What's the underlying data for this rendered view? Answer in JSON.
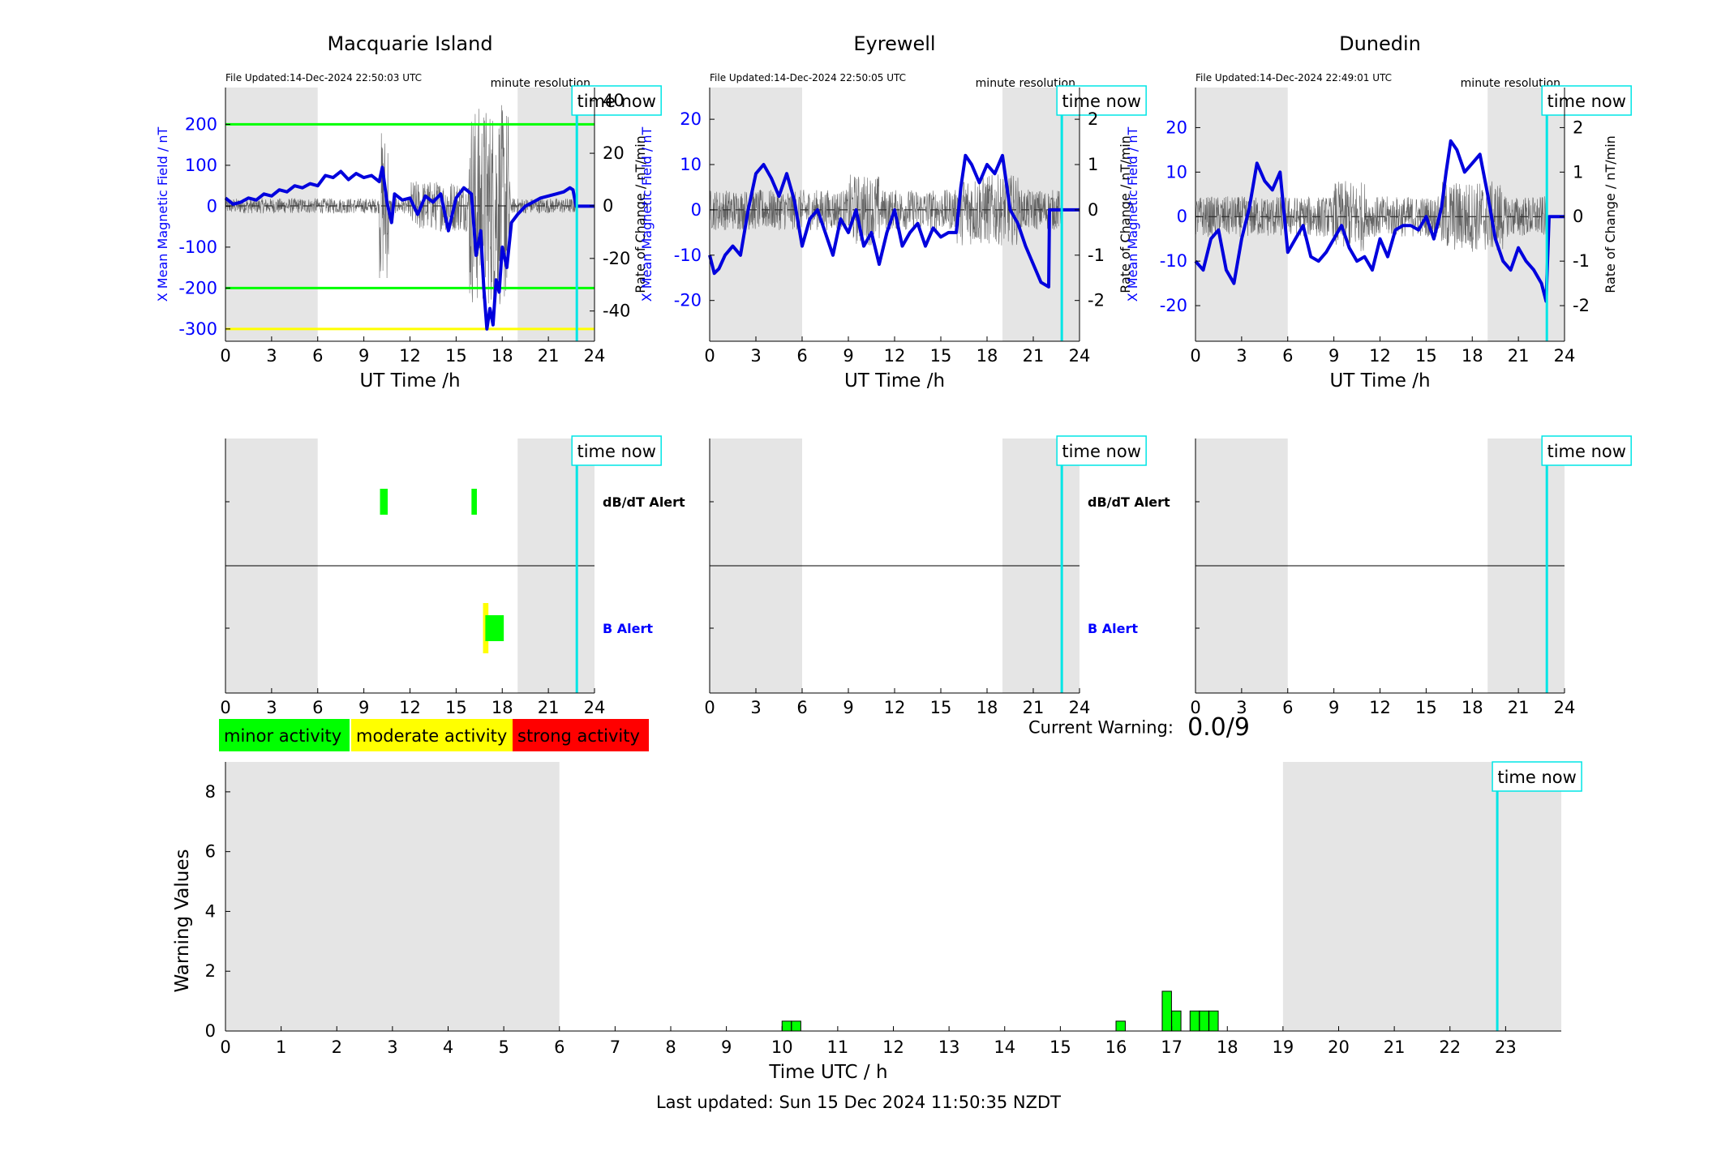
{
  "page": {
    "current_warning_label": "Current Warning:",
    "current_warning_value": "0.0/9",
    "footer": "Last updated: Sun 15 Dec 2024 11:50:35 NZDT",
    "time_now_label": "time now"
  },
  "legend": {
    "minor": "minor activity",
    "moderate": "moderate activity",
    "strong": "strong activity"
  },
  "colors": {
    "axis_blue": "#0000ff",
    "series_blue": "#0000dd",
    "night_shade": "#e5e5e5",
    "cyan_time": "#00e5e5",
    "green": "#00ff00",
    "yellow": "#ffff00",
    "red": "#ff0000",
    "rate_trace": "#333333"
  },
  "chart_data": [
    {
      "type": "line",
      "title": "Macquarie Island",
      "file_updated": "File Updated:14-Dec-2024 22:50:03 UTC",
      "resolution": "minute resolution",
      "xlabel": "UT Time /h",
      "ylabel_left": "X Mean Magnetic Field / nT",
      "ylabel_right": "Rate of Change / nT/min",
      "xlim": [
        0,
        24
      ],
      "xticks": [
        0,
        3,
        6,
        9,
        12,
        15,
        18,
        21,
        24
      ],
      "ylim_left": [
        -330,
        290
      ],
      "yticks_left": [
        -300,
        -200,
        -100,
        0,
        100,
        200
      ],
      "ylim_right": [
        -51.5,
        45
      ],
      "yticks_right": [
        -40,
        -20,
        0,
        20,
        40
      ],
      "night_shading": [
        [
          0,
          6
        ],
        [
          19,
          24
        ]
      ],
      "time_now": 22.85,
      "thresholds": [
        {
          "value": 200,
          "color": "#00ff00"
        },
        {
          "value": -200,
          "color": "#00ff00"
        },
        {
          "value": -300,
          "color": "#ffff00"
        }
      ],
      "series": [
        {
          "x": [
            0,
            0.5,
            1,
            1.5,
            2,
            2.5,
            3,
            3.5,
            4,
            4.5,
            5,
            5.5,
            6,
            6.5,
            7,
            7.5,
            8,
            8.5,
            9,
            9.5,
            10,
            10.2,
            10.5,
            10.8,
            11,
            11.5,
            12,
            12.5,
            13,
            13.5,
            14,
            14.5,
            15,
            15.5,
            16,
            16.3,
            16.6,
            16.8,
            17,
            17.2,
            17.4,
            17.6,
            17.8,
            18,
            18.3,
            18.6,
            19,
            19.5,
            20,
            20.5,
            21,
            21.5,
            22,
            22.4,
            22.6,
            22.8,
            23,
            24
          ],
          "y": [
            20,
            5,
            10,
            20,
            15,
            30,
            25,
            40,
            35,
            50,
            45,
            55,
            50,
            75,
            70,
            85,
            65,
            80,
            70,
            75,
            60,
            95,
            10,
            -40,
            30,
            15,
            20,
            -20,
            25,
            10,
            30,
            -60,
            20,
            45,
            30,
            -120,
            -60,
            -200,
            -300,
            -250,
            -290,
            -180,
            -210,
            -100,
            -150,
            -40,
            -20,
            0,
            10,
            20,
            25,
            30,
            35,
            45,
            40,
            0,
            0,
            0
          ]
        }
      ]
    },
    {
      "type": "line",
      "title": "Eyrewell",
      "file_updated": "File Updated:14-Dec-2024 22:50:05 UTC",
      "resolution": "minute resolution",
      "xlabel": "UT Time /h",
      "ylabel_left": "X Mean Magnetic Field / nT",
      "ylabel_right": "Rate of Change / nT/min",
      "xlim": [
        0,
        24
      ],
      "xticks": [
        0,
        3,
        6,
        9,
        12,
        15,
        18,
        21,
        24
      ],
      "ylim_left": [
        -29,
        27
      ],
      "yticks_left": [
        -20,
        -10,
        0,
        10,
        20
      ],
      "ylim_right": [
        -2.9,
        2.7
      ],
      "yticks_right": [
        -2,
        -1,
        0,
        1,
        2
      ],
      "night_shading": [
        [
          0,
          6
        ],
        [
          19,
          24
        ]
      ],
      "time_now": 22.85,
      "thresholds": [],
      "series": [
        {
          "x": [
            0,
            0.3,
            0.6,
            1,
            1.5,
            2,
            2.5,
            3,
            3.5,
            4,
            4.5,
            5,
            5.5,
            6,
            6.5,
            7,
            7.5,
            8,
            8.5,
            9,
            9.5,
            10,
            10.5,
            11,
            11.5,
            12,
            12.5,
            13,
            13.5,
            14,
            14.5,
            15,
            15.5,
            16,
            16.3,
            16.6,
            17,
            17.5,
            18,
            18.5,
            19,
            19.5,
            20,
            20.5,
            21,
            21.5,
            22,
            22.05,
            22.3,
            24
          ],
          "y": [
            -10,
            -14,
            -13,
            -10,
            -8,
            -10,
            0,
            8,
            10,
            7,
            3,
            8,
            2,
            -8,
            -2,
            0,
            -5,
            -10,
            -2,
            -5,
            0,
            -8,
            -5,
            -12,
            -5,
            0,
            -8,
            -5,
            -3,
            -8,
            -4,
            -6,
            -5,
            -5,
            5,
            12,
            10,
            6,
            10,
            8,
            12,
            0,
            -3,
            -8,
            -12,
            -16,
            -17,
            0,
            0,
            0
          ]
        }
      ]
    },
    {
      "type": "line",
      "title": "Dunedin",
      "file_updated": "File Updated:14-Dec-2024 22:49:01 UTC",
      "resolution": "minute resolution",
      "xlabel": "UT Time /h",
      "ylabel_left": "X Mean Magnetic Field / nT",
      "ylabel_right": "Rate of Change / nT/min",
      "xlim": [
        0,
        24
      ],
      "xticks": [
        0,
        3,
        6,
        9,
        12,
        15,
        18,
        21,
        24
      ],
      "ylim_left": [
        -28,
        29
      ],
      "yticks_left": [
        -20,
        -10,
        0,
        10,
        20
      ],
      "ylim_right": [
        -2.8,
        2.9
      ],
      "yticks_right": [
        -2,
        -1,
        0,
        1,
        2
      ],
      "night_shading": [
        [
          0,
          6
        ],
        [
          19,
          24
        ]
      ],
      "time_now": 22.85,
      "thresholds": [],
      "series": [
        {
          "x": [
            0,
            0.5,
            1,
            1.5,
            2,
            2.5,
            3,
            3.5,
            4,
            4.5,
            5,
            5.5,
            6,
            6.5,
            7,
            7.5,
            8,
            8.5,
            9,
            9.5,
            10,
            10.5,
            11,
            11.5,
            12,
            12.5,
            13,
            13.5,
            14,
            14.5,
            15,
            15.5,
            16,
            16.3,
            16.6,
            17,
            17.5,
            18,
            18.5,
            19,
            19.5,
            20,
            20.5,
            21,
            21.5,
            22,
            22.5,
            22.8,
            23,
            24
          ],
          "y": [
            -10,
            -12,
            -5,
            -3,
            -12,
            -15,
            -5,
            2,
            12,
            8,
            6,
            10,
            -8,
            -5,
            -2,
            -9,
            -10,
            -8,
            -5,
            -2,
            -7,
            -10,
            -9,
            -12,
            -5,
            -9,
            -3,
            -2,
            -2,
            -3,
            0,
            -5,
            2,
            10,
            17,
            15,
            10,
            12,
            14,
            5,
            -5,
            -10,
            -12,
            -7,
            -10,
            -12,
            -15,
            -19,
            0,
            0
          ]
        }
      ]
    },
    {
      "type": "heatmap",
      "station": "Macquarie Island",
      "rows": [
        "dB/dT Alert",
        "B Alert"
      ],
      "xlim": [
        0,
        24
      ],
      "xticks": [
        0,
        3,
        6,
        9,
        12,
        15,
        18,
        21,
        24
      ],
      "night_shading": [
        [
          0,
          6
        ],
        [
          19,
          24
        ]
      ],
      "time_now": 22.85,
      "events": [
        {
          "row": "dB/dT Alert",
          "x0": 10.05,
          "x1": 10.55,
          "level": "minor"
        },
        {
          "row": "dB/dT Alert",
          "x0": 16.0,
          "x1": 16.35,
          "level": "minor"
        },
        {
          "row": "B Alert",
          "x0": 16.75,
          "x1": 17.1,
          "level": "moderate",
          "span": "wide"
        },
        {
          "row": "B Alert",
          "x0": 16.9,
          "x1": 18.1,
          "level": "minor"
        }
      ]
    },
    {
      "type": "heatmap",
      "station": "Eyrewell",
      "rows": [
        "dB/dT Alert",
        "B Alert"
      ],
      "xlim": [
        0,
        24
      ],
      "xticks": [
        0,
        3,
        6,
        9,
        12,
        15,
        18,
        21,
        24
      ],
      "night_shading": [
        [
          0,
          6
        ],
        [
          19,
          24
        ]
      ],
      "time_now": 22.85,
      "events": []
    },
    {
      "type": "heatmap",
      "station": "Dunedin",
      "rows": [],
      "xlim": [
        0,
        24
      ],
      "xticks": [
        0,
        3,
        6,
        9,
        12,
        15,
        18,
        21,
        24
      ],
      "night_shading": [
        [
          0,
          6
        ],
        [
          19,
          24
        ]
      ],
      "time_now": 22.85,
      "events": []
    },
    {
      "type": "bar",
      "xlabel": "Time UTC / h",
      "ylabel": "Warning Values",
      "xlim": [
        0,
        24
      ],
      "xticks": [
        0,
        1,
        2,
        3,
        4,
        5,
        6,
        7,
        8,
        9,
        10,
        11,
        12,
        13,
        14,
        15,
        16,
        17,
        18,
        19,
        20,
        21,
        22,
        23
      ],
      "ylim": [
        0,
        9
      ],
      "yticks": [
        0,
        2,
        4,
        6,
        8
      ],
      "night_shading": [
        [
          0,
          6
        ],
        [
          19,
          24
        ]
      ],
      "time_now": 22.85,
      "bar_width": 0.1667,
      "bars": [
        {
          "x": 10.0,
          "value": 0.33
        },
        {
          "x": 10.17,
          "value": 0.33
        },
        {
          "x": 16.0,
          "value": 0.33
        },
        {
          "x": 16.83,
          "value": 1.33
        },
        {
          "x": 17.0,
          "value": 0.67
        },
        {
          "x": 17.33,
          "value": 0.67
        },
        {
          "x": 17.5,
          "value": 0.67
        },
        {
          "x": 17.67,
          "value": 0.67
        }
      ]
    }
  ]
}
